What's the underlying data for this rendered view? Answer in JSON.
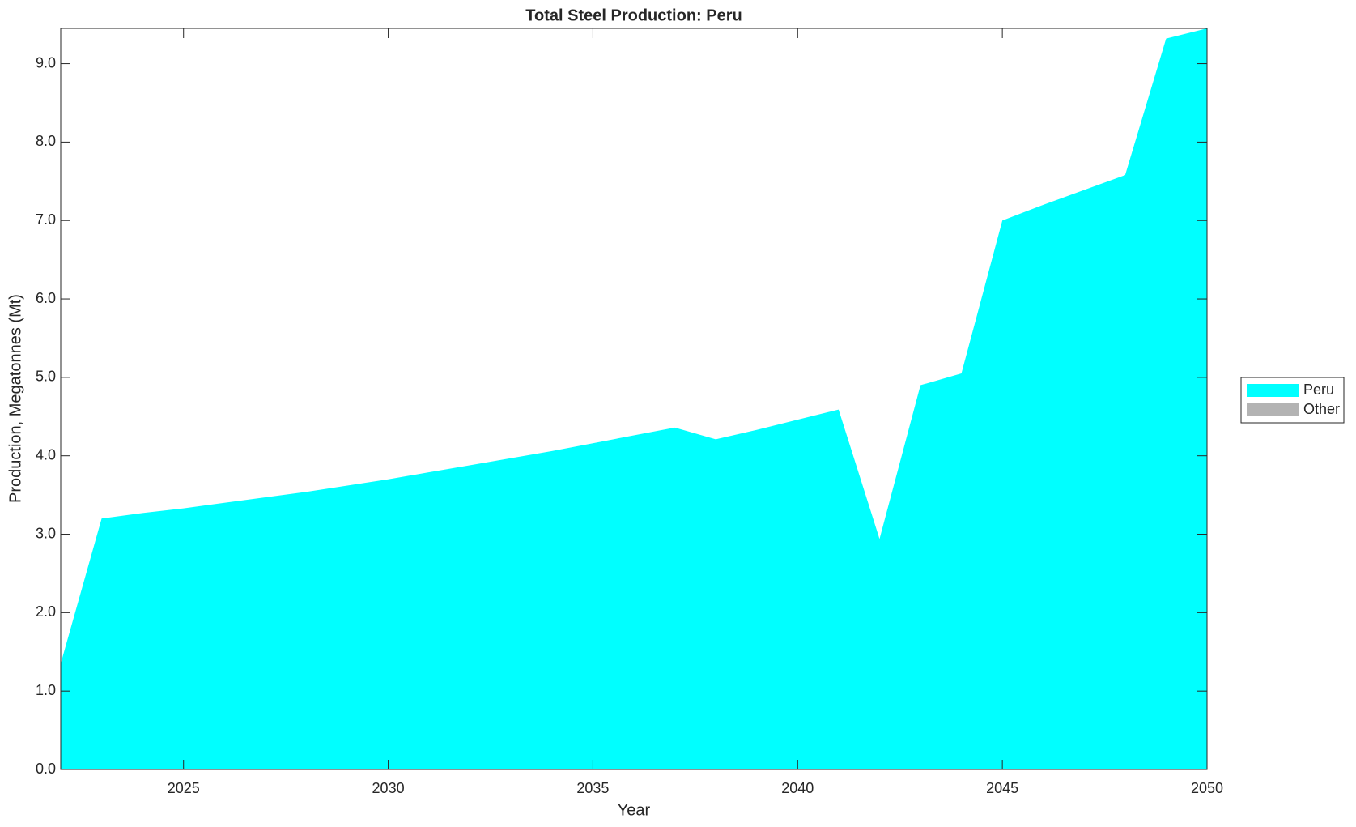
{
  "chart_data": {
    "type": "area",
    "title": "Total Steel Production: Peru",
    "xlabel": "Year",
    "ylabel": "Production, Megatonnes (Mt)",
    "x": [
      2022,
      2023,
      2024,
      2025,
      2026,
      2027,
      2028,
      2029,
      2030,
      2031,
      2032,
      2033,
      2034,
      2035,
      2036,
      2037,
      2038,
      2039,
      2040,
      2041,
      2042,
      2043,
      2044,
      2045,
      2046,
      2047,
      2048,
      2049,
      2050
    ],
    "series": [
      {
        "name": "Peru",
        "color": "#00ffff",
        "values": [
          1.35,
          3.2,
          3.27,
          3.33,
          3.4,
          3.47,
          3.54,
          3.62,
          3.7,
          3.79,
          3.88,
          3.97,
          4.06,
          4.16,
          4.26,
          4.36,
          4.21,
          4.33,
          4.46,
          4.59,
          2.94,
          4.9,
          5.05,
          7.0,
          7.2,
          7.39,
          7.58,
          9.32,
          9.45
        ]
      },
      {
        "name": "Other",
        "color": "#b3b3b3",
        "values": [
          0,
          0,
          0,
          0,
          0,
          0,
          0,
          0,
          0,
          0,
          0,
          0,
          0,
          0,
          0,
          0,
          0,
          0,
          0,
          0,
          0,
          0,
          0,
          0,
          0,
          0,
          0,
          0,
          0
        ]
      }
    ],
    "xlim": [
      2022,
      2050
    ],
    "xticks": [
      2025,
      2030,
      2035,
      2040,
      2045,
      2050
    ],
    "ylim": [
      0,
      9.45
    ],
    "yticks": [
      {
        "value": 0,
        "label": "0.0"
      },
      {
        "value": 1,
        "label": "1.0"
      },
      {
        "value": 2,
        "label": "2.0"
      },
      {
        "value": 3,
        "label": "3.0"
      },
      {
        "value": 4,
        "label": "4.0"
      },
      {
        "value": 5,
        "label": "5.0"
      },
      {
        "value": 6,
        "label": "6.0"
      },
      {
        "value": 7,
        "label": "7.0"
      },
      {
        "value": 8,
        "label": "8.0"
      },
      {
        "value": 9,
        "label": "9.0"
      }
    ],
    "legend": "east-outside"
  }
}
